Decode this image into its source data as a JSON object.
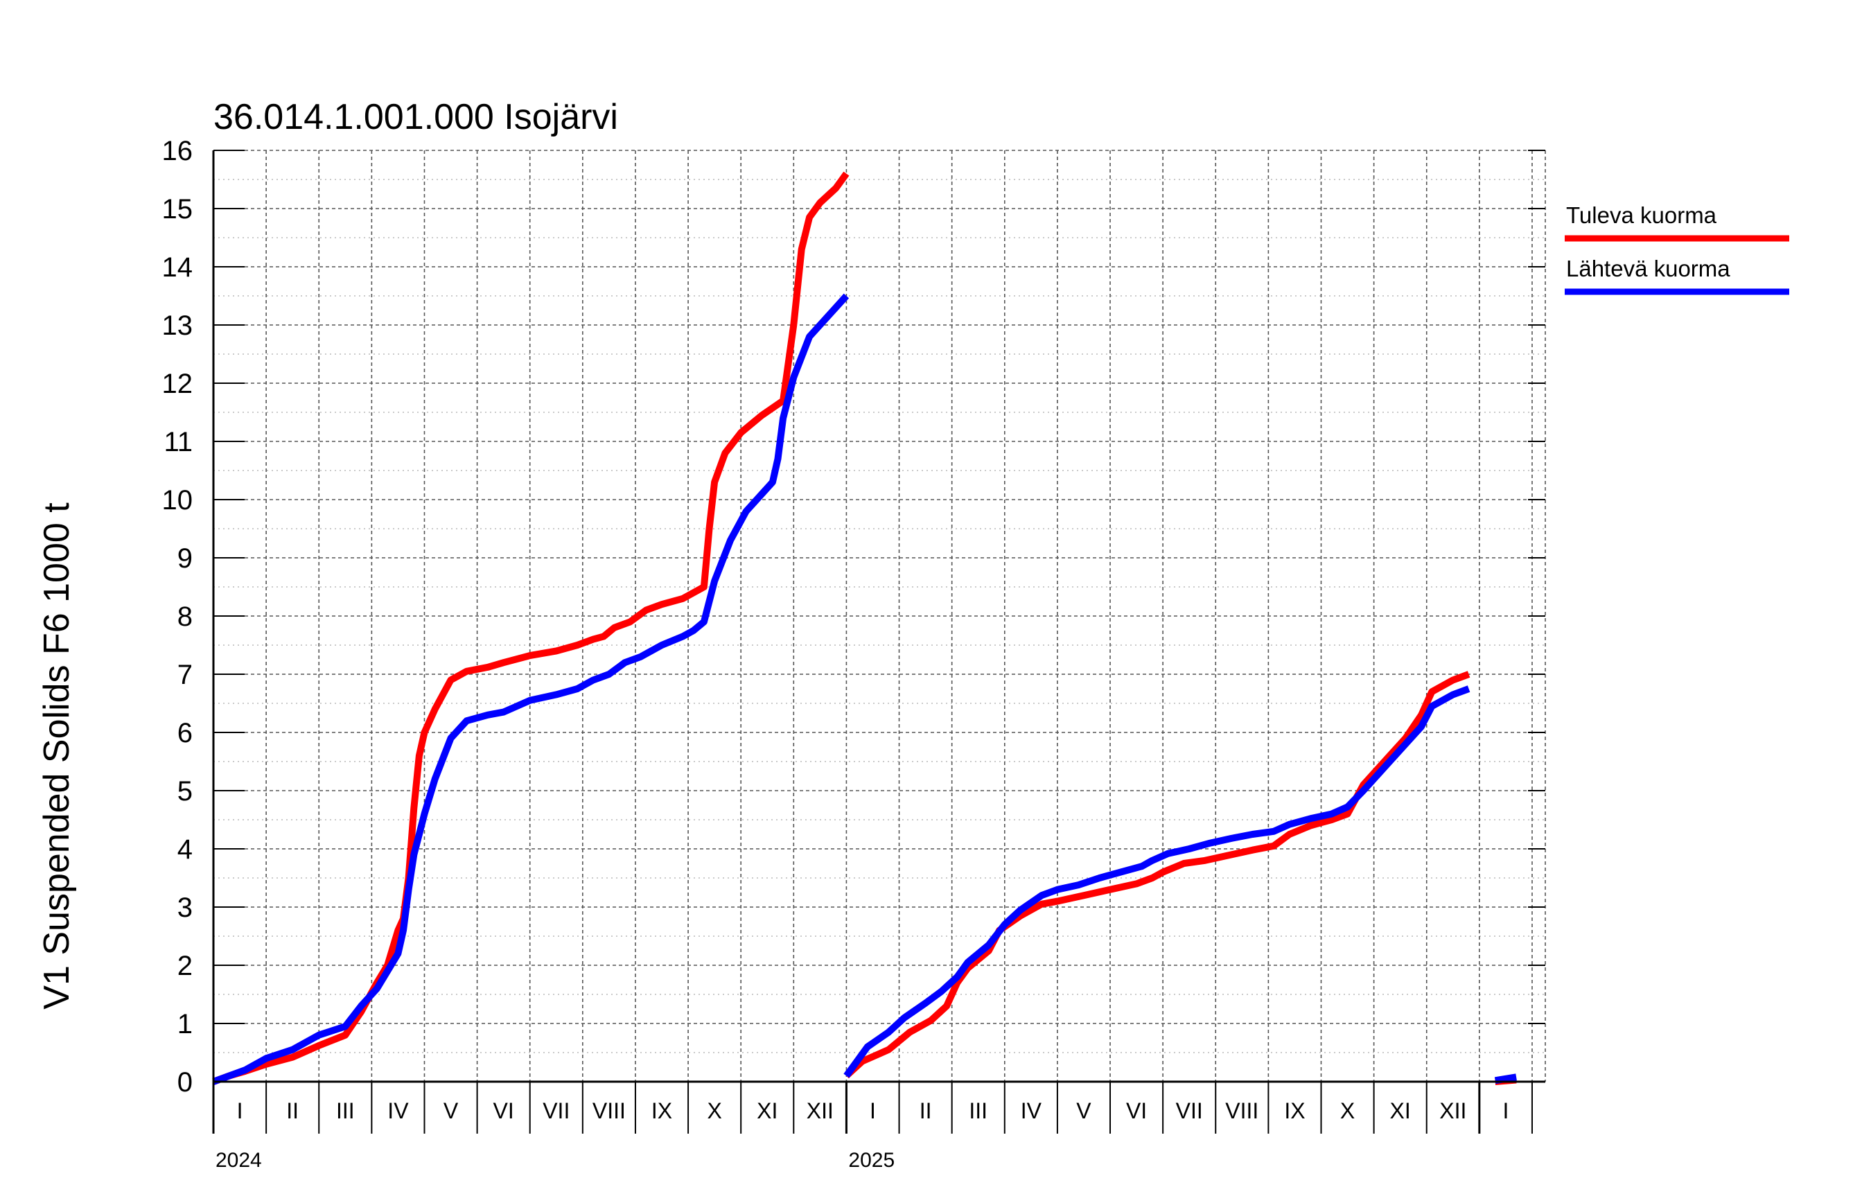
{
  "chart_data": {
    "type": "line",
    "title": "36.014.1.001.000 Isojärvi",
    "ylabel": "V1 Suspended Solids F6 1000 t",
    "ylim": [
      0,
      16
    ],
    "yticks": [
      "0",
      "1",
      "2",
      "3",
      "4",
      "5",
      "6",
      "7",
      "8",
      "9",
      "10",
      "11",
      "12",
      "13",
      "14",
      "15",
      "16"
    ],
    "month_labels": [
      "I",
      "II",
      "III",
      "IV",
      "V",
      "VI",
      "VII",
      "VIII",
      "IX",
      "X",
      "XI",
      "XII"
    ],
    "years": [
      "2024",
      "2025"
    ],
    "x_unit": "months since 1 Jan 2024",
    "xlim": [
      0,
      25.25
    ],
    "grid": true,
    "legend_position": "right",
    "series": [
      {
        "name": "Tuleva kuorma",
        "color": "#ff0000",
        "segments": [
          [
            [
              0,
              0
            ],
            [
              0.3,
              0.1
            ],
            [
              0.6,
              0.18
            ],
            [
              1,
              0.3
            ],
            [
              1.5,
              0.42
            ],
            [
              2,
              0.62
            ],
            [
              2.5,
              0.8
            ],
            [
              2.8,
              1.2
            ],
            [
              3.1,
              1.7
            ],
            [
              3.3,
              2.0
            ],
            [
              3.5,
              2.6
            ],
            [
              3.6,
              2.8
            ],
            [
              3.7,
              3.5
            ],
            [
              3.8,
              4.7
            ],
            [
              3.9,
              5.6
            ],
            [
              4.0,
              6.0
            ],
            [
              4.2,
              6.4
            ],
            [
              4.5,
              6.9
            ],
            [
              4.8,
              7.05
            ],
            [
              5.2,
              7.12
            ],
            [
              5.5,
              7.2
            ],
            [
              6,
              7.32
            ],
            [
              6.5,
              7.4
            ],
            [
              6.9,
              7.5
            ],
            [
              7.2,
              7.6
            ],
            [
              7.4,
              7.65
            ],
            [
              7.6,
              7.8
            ],
            [
              7.9,
              7.9
            ],
            [
              8.2,
              8.1
            ],
            [
              8.5,
              8.2
            ],
            [
              8.9,
              8.3
            ],
            [
              9.1,
              8.4
            ],
            [
              9.3,
              8.5
            ],
            [
              9.4,
              9.5
            ],
            [
              9.5,
              10.3
            ],
            [
              9.7,
              10.8
            ],
            [
              10,
              11.15
            ],
            [
              10.4,
              11.45
            ],
            [
              10.8,
              11.7
            ],
            [
              11.0,
              13.0
            ],
            [
              11.15,
              14.3
            ],
            [
              11.3,
              14.85
            ],
            [
              11.5,
              15.1
            ],
            [
              11.8,
              15.35
            ],
            [
              12,
              15.6
            ]
          ],
          [
            [
              12,
              0.1
            ],
            [
              12.3,
              0.35
            ],
            [
              12.8,
              0.55
            ],
            [
              13.2,
              0.85
            ],
            [
              13.6,
              1.05
            ],
            [
              13.9,
              1.3
            ],
            [
              14.1,
              1.7
            ],
            [
              14.3,
              1.95
            ],
            [
              14.7,
              2.25
            ],
            [
              14.9,
              2.6
            ],
            [
              15.3,
              2.85
            ],
            [
              15.7,
              3.05
            ],
            [
              16,
              3.1
            ],
            [
              16.5,
              3.2
            ],
            [
              17,
              3.3
            ],
            [
              17.5,
              3.4
            ],
            [
              17.8,
              3.5
            ],
            [
              18,
              3.6
            ],
            [
              18.4,
              3.75
            ],
            [
              18.8,
              3.8
            ],
            [
              19.3,
              3.9
            ],
            [
              19.7,
              3.98
            ],
            [
              20.1,
              4.05
            ],
            [
              20.4,
              4.25
            ],
            [
              20.8,
              4.4
            ],
            [
              21.2,
              4.5
            ],
            [
              21.5,
              4.6
            ],
            [
              21.8,
              5.1
            ],
            [
              22.2,
              5.5
            ],
            [
              22.6,
              5.9
            ],
            [
              22.9,
              6.3
            ],
            [
              23.1,
              6.7
            ],
            [
              23.5,
              6.9
            ],
            [
              23.8,
              7.0
            ]
          ],
          [
            [
              24.3,
              0
            ],
            [
              24.7,
              0.03
            ]
          ]
        ]
      },
      {
        "name": "Lähtevä kuorma",
        "color": "#0000ff",
        "segments": [
          [
            [
              0,
              0
            ],
            [
              0.3,
              0.1
            ],
            [
              0.6,
              0.2
            ],
            [
              1,
              0.4
            ],
            [
              1.5,
              0.55
            ],
            [
              2,
              0.8
            ],
            [
              2.5,
              0.95
            ],
            [
              2.8,
              1.3
            ],
            [
              3.1,
              1.6
            ],
            [
              3.3,
              1.9
            ],
            [
              3.5,
              2.2
            ],
            [
              3.6,
              2.6
            ],
            [
              3.7,
              3.3
            ],
            [
              3.8,
              3.9
            ],
            [
              4.0,
              4.6
            ],
            [
              4.2,
              5.2
            ],
            [
              4.5,
              5.9
            ],
            [
              4.8,
              6.2
            ],
            [
              5.2,
              6.3
            ],
            [
              5.5,
              6.35
            ],
            [
              6,
              6.55
            ],
            [
              6.5,
              6.65
            ],
            [
              6.9,
              6.75
            ],
            [
              7.2,
              6.9
            ],
            [
              7.5,
              7.0
            ],
            [
              7.8,
              7.2
            ],
            [
              8.1,
              7.3
            ],
            [
              8.5,
              7.5
            ],
            [
              8.9,
              7.65
            ],
            [
              9.1,
              7.75
            ],
            [
              9.3,
              7.9
            ],
            [
              9.5,
              8.6
            ],
            [
              9.8,
              9.3
            ],
            [
              10.1,
              9.8
            ],
            [
              10.4,
              10.1
            ],
            [
              10.6,
              10.3
            ],
            [
              10.7,
              10.7
            ],
            [
              10.8,
              11.4
            ],
            [
              11.0,
              12.1
            ],
            [
              11.3,
              12.8
            ],
            [
              11.7,
              13.2
            ],
            [
              12,
              13.5
            ]
          ],
          [
            [
              12,
              0.1
            ],
            [
              12.4,
              0.6
            ],
            [
              12.8,
              0.85
            ],
            [
              13.1,
              1.1
            ],
            [
              13.5,
              1.35
            ],
            [
              13.8,
              1.55
            ],
            [
              14.1,
              1.8
            ],
            [
              14.3,
              2.05
            ],
            [
              14.7,
              2.35
            ],
            [
              15,
              2.7
            ],
            [
              15.3,
              2.95
            ],
            [
              15.7,
              3.2
            ],
            [
              16,
              3.3
            ],
            [
              16.4,
              3.38
            ],
            [
              16.8,
              3.5
            ],
            [
              17.2,
              3.6
            ],
            [
              17.6,
              3.7
            ],
            [
              17.8,
              3.8
            ],
            [
              18.1,
              3.92
            ],
            [
              18.5,
              4.0
            ],
            [
              18.9,
              4.1
            ],
            [
              19.3,
              4.18
            ],
            [
              19.7,
              4.25
            ],
            [
              20.1,
              4.3
            ],
            [
              20.4,
              4.42
            ],
            [
              20.8,
              4.52
            ],
            [
              21.2,
              4.6
            ],
            [
              21.5,
              4.72
            ],
            [
              21.8,
              5.0
            ],
            [
              22.2,
              5.4
            ],
            [
              22.6,
              5.8
            ],
            [
              22.9,
              6.1
            ],
            [
              23.1,
              6.45
            ],
            [
              23.5,
              6.65
            ],
            [
              23.8,
              6.75
            ]
          ],
          [
            [
              24.3,
              0.02
            ],
            [
              24.7,
              0.08
            ]
          ]
        ]
      }
    ]
  }
}
